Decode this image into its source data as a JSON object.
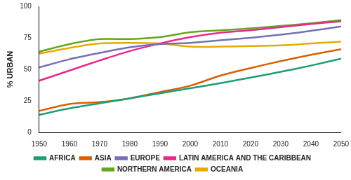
{
  "chart_data": {
    "type": "line",
    "y_label": "% URBAN",
    "x": [
      1950,
      1960,
      1970,
      1980,
      1990,
      2000,
      2010,
      2020,
      2030,
      2040,
      2050
    ],
    "series": [
      {
        "name": "AFRICA",
        "color": "#1b9e77",
        "values": [
          14,
          19,
          23,
          27,
          31,
          35,
          39,
          43.5,
          48,
          53,
          58.5
        ]
      },
      {
        "name": "ASIA",
        "color": "#d95f02",
        "values": [
          17,
          22.5,
          24,
          27,
          32,
          37,
          45,
          51,
          56.5,
          61.5,
          66
        ]
      },
      {
        "name": "EUROPE",
        "color": "#7570b3",
        "values": [
          51.5,
          58,
          63,
          67.5,
          70,
          71,
          73,
          75,
          77.5,
          80.5,
          84
        ]
      },
      {
        "name": "LATIN AMERICA AND THE CARIBBEAN",
        "color": "#e7298a",
        "values": [
          41,
          49,
          57,
          64.5,
          70.5,
          75.5,
          79,
          81,
          83.5,
          86,
          88
        ]
      },
      {
        "name": "NORTHERN AMERICA",
        "color": "#66a61e",
        "values": [
          64,
          70,
          74,
          74,
          75.5,
          79.5,
          81,
          82.5,
          84.5,
          86.5,
          89
        ]
      },
      {
        "name": "OCEANIA",
        "color": "#e6ab02",
        "values": [
          62.5,
          67,
          70.5,
          71,
          70.5,
          68,
          68,
          68.5,
          69,
          70.5,
          72
        ]
      }
    ],
    "xlim": [
      1950,
      2050
    ],
    "xticks": [
      1950,
      1960,
      1970,
      1980,
      1990,
      2000,
      2010,
      2020,
      2030,
      2040,
      2050
    ],
    "ylim": [
      0,
      100
    ],
    "yticks": [
      0,
      25,
      50,
      75,
      100
    ],
    "grid": false,
    "legend": "bottom"
  }
}
